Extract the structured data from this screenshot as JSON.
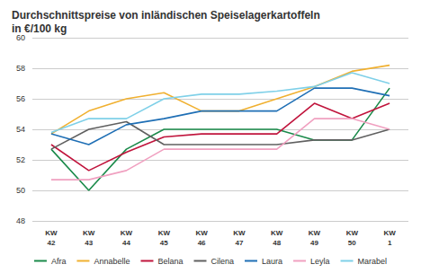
{
  "chart_data": {
    "type": "line",
    "title": "Durchschnittspreise von inländischen Speiselagerkartoffeln\nin €/100 kg",
    "categories": [
      "KW 42",
      "KW 43",
      "KW 44",
      "KW 45",
      "KW 46",
      "KW 47",
      "KW 48",
      "KW 49",
      "KW 50",
      "KW 1"
    ],
    "series": [
      {
        "name": "Afra",
        "color": "#1a8a4a",
        "values": [
          52.7,
          50.0,
          52.7,
          54.0,
          54.0,
          54.0,
          54.0,
          53.3,
          53.3,
          56.7
        ]
      },
      {
        "name": "Annabelle",
        "color": "#f0b030",
        "values": [
          53.7,
          55.2,
          56.0,
          56.4,
          55.2,
          55.2,
          56.0,
          56.8,
          57.8,
          58.2
        ]
      },
      {
        "name": "Belana",
        "color": "#c0143c",
        "values": [
          53.0,
          51.3,
          52.5,
          53.5,
          53.7,
          53.7,
          53.7,
          55.7,
          54.7,
          55.7
        ]
      },
      {
        "name": "Cilena",
        "color": "#606060",
        "values": [
          52.7,
          54.0,
          54.5,
          53.0,
          53.0,
          53.0,
          53.0,
          53.3,
          53.3,
          54.0
        ]
      },
      {
        "name": "Laura",
        "color": "#1f6fb5",
        "values": [
          53.7,
          53.0,
          54.3,
          54.7,
          55.2,
          55.2,
          55.2,
          56.7,
          56.7,
          56.2
        ]
      },
      {
        "name": "Leyla",
        "color": "#f0a0c0",
        "values": [
          50.7,
          50.7,
          51.3,
          52.7,
          52.7,
          52.7,
          52.7,
          54.7,
          54.7,
          54.0
        ]
      },
      {
        "name": "Marabel",
        "color": "#7fd0e8",
        "values": [
          53.8,
          54.7,
          54.7,
          56.0,
          56.3,
          56.3,
          56.5,
          56.8,
          57.7,
          57.0
        ]
      }
    ],
    "ylim": [
      48,
      60
    ],
    "yticks": [
      48,
      50,
      52,
      54,
      56,
      58,
      60
    ],
    "grid": true,
    "legend": "bottom"
  }
}
